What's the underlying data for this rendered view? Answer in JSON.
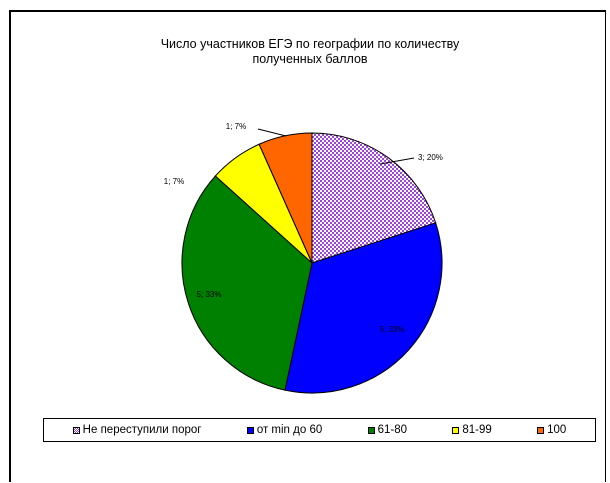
{
  "chart_data": {
    "type": "pie",
    "title": "Число участников ЕГЭ по географии по количеству полученных баллов",
    "title_lines": [
      "Число участников ЕГЭ по географии по количеству",
      "полученных баллов"
    ],
    "slices": [
      {
        "label": "Не переступили порог",
        "value": 3,
        "percent": "20%",
        "data_label": "3; 20%",
        "color": "#cc66ff",
        "pattern": "checker"
      },
      {
        "label": "от min до 60",
        "value": 5,
        "percent": "33%",
        "data_label": "5; 33%",
        "color": "#0000ff"
      },
      {
        "label": "61-80",
        "value": 5,
        "percent": "33%",
        "data_label": "5; 33%",
        "color": "#008000"
      },
      {
        "label": "81-99",
        "value": 1,
        "percent": "7%",
        "data_label": "1; 7%",
        "color": "#ffff00"
      },
      {
        "label": "100",
        "value": 1,
        "percent": "7%",
        "data_label": "1; 7%",
        "color": "#ff6600"
      }
    ],
    "legend_position": "bottom"
  }
}
